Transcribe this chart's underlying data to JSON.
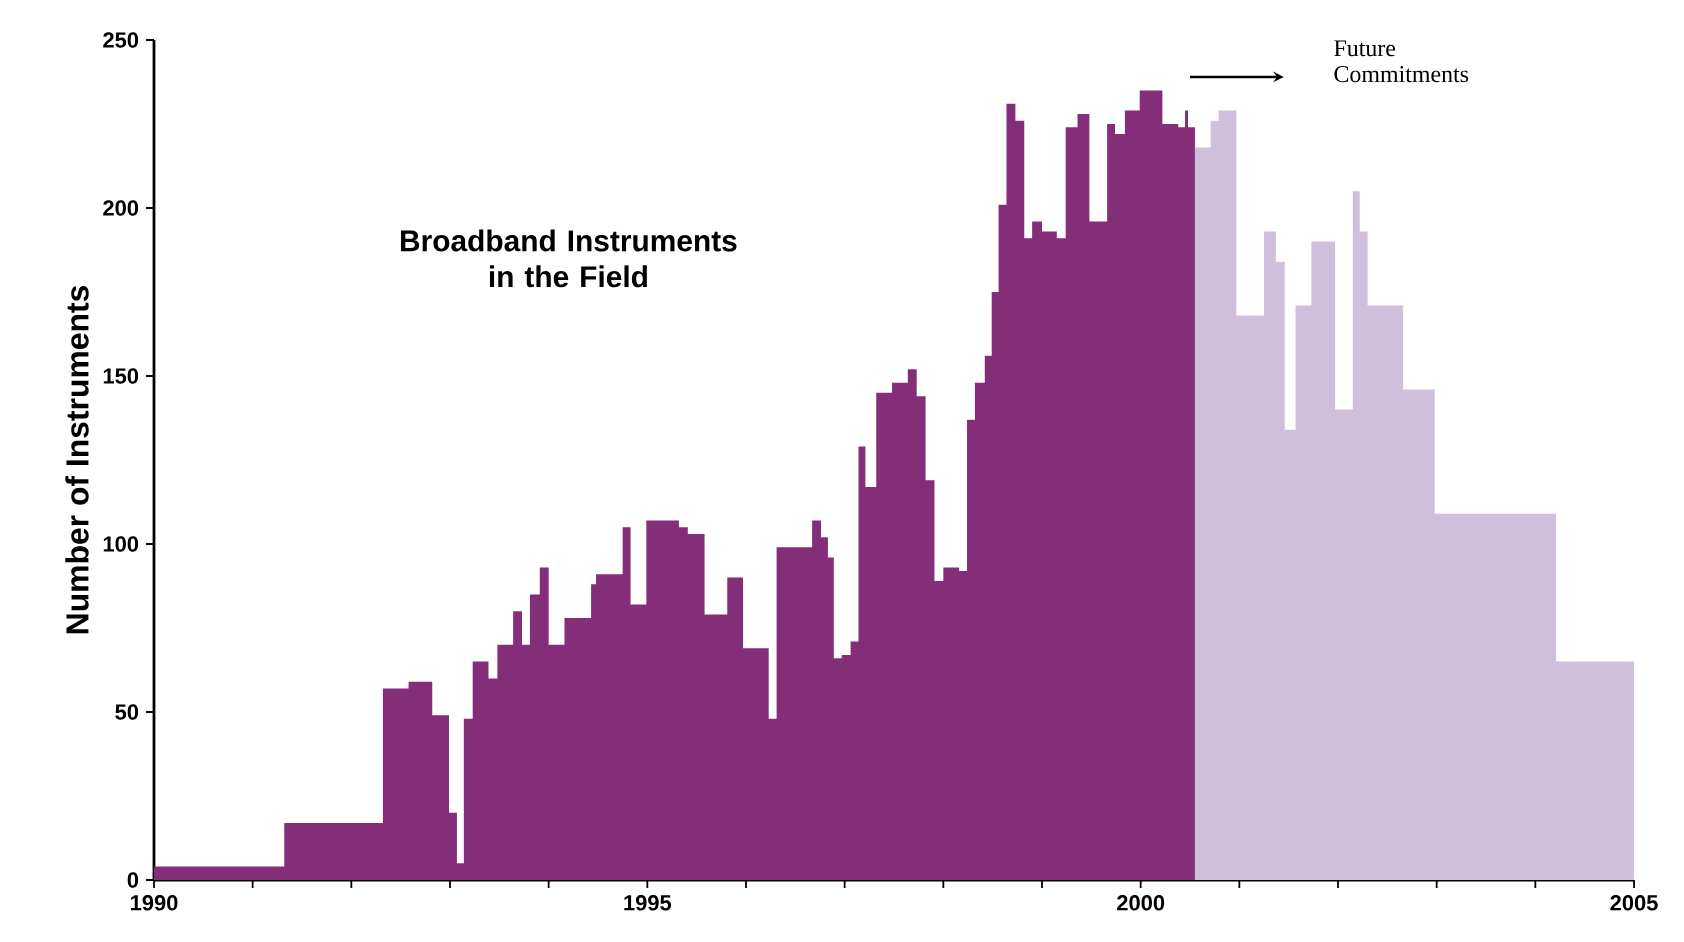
{
  "chart_data": {
    "type": "area",
    "title": "Broadband Instruments in the Field",
    "ylabel": "Number of Instruments",
    "annotations": [
      "Future Commitments"
    ],
    "series": [
      {
        "color": "#842d78",
        "x": [
          1990,
          1991.32,
          1992.32,
          1992.58,
          1992.82,
          1992.99,
          1993.07,
          1993.14,
          1993.23,
          1993.39,
          1993.48,
          1993.64,
          1993.73,
          1993.81,
          1993.91,
          1994.0,
          1994.16,
          1994.43,
          1994.48,
          1994.75,
          1994.83,
          1994.99,
          1995.32,
          1995.41,
          1995.58,
          1995.81,
          1995.97,
          1996.23,
          1996.31,
          1996.67,
          1996.76,
          1996.83,
          1996.89,
          1996.97,
          1997.06,
          1997.14,
          1997.21,
          1997.32,
          1997.48,
          1997.64,
          1997.73,
          1997.82,
          1997.91,
          1998.0,
          1998.16,
          1998.24,
          1998.32,
          1998.42,
          1998.49,
          1998.56,
          1998.64,
          1998.73,
          1998.82,
          1998.9,
          1999.0,
          1999.15,
          1999.24,
          1999.36,
          1999.48,
          1999.66,
          1999.74,
          1999.84,
          1999.99,
          2000.22,
          2000.38,
          2000.45,
          2000.48,
          2000.55
        ],
        "values": [
          4,
          17,
          57,
          59,
          49,
          20,
          5,
          48,
          65,
          60,
          70,
          80,
          70,
          85,
          93,
          70,
          78,
          88,
          91,
          105,
          82,
          107,
          105,
          103,
          79,
          90,
          69,
          48,
          99,
          107,
          102,
          96,
          66,
          67,
          71,
          129,
          117,
          145,
          148,
          152,
          144,
          119,
          89,
          93,
          92,
          137,
          148,
          156,
          175,
          201,
          231,
          226,
          191,
          196,
          193,
          191,
          224,
          228,
          196,
          225,
          222,
          229,
          235,
          225,
          224,
          229,
          224,
          224
        ]
      },
      {
        "color": "#cfbfdc",
        "x": [
          2000.55,
          2000.71,
          2000.79,
          2000.97,
          2001.25,
          2001.37,
          2001.46,
          2001.57,
          2001.73,
          2001.97,
          2002.15,
          2002.22,
          2002.3,
          2002.66,
          2002.98,
          2004.21,
          2005.0
        ],
        "values": [
          218,
          226,
          229,
          168,
          193,
          184,
          134,
          171,
          190,
          140,
          205,
          193,
          171,
          146,
          109,
          65,
          65
        ]
      }
    ],
    "xlim": [
      1990,
      2005
    ],
    "ylim": [
      0,
      250
    ],
    "xticks": [
      1990,
      {
        "value": 1991,
        "label": null
      },
      {
        "value": 1992,
        "label": null
      },
      {
        "value": 1993,
        "label": null
      },
      {
        "value": 1994,
        "label": null
      },
      1995,
      {
        "value": 1996,
        "label": null
      },
      {
        "value": 1997,
        "label": null
      },
      {
        "value": 1998,
        "label": null
      },
      {
        "value": 1999,
        "label": null
      },
      2000,
      {
        "value": 2001,
        "label": null
      },
      {
        "value": 2002,
        "label": null
      },
      {
        "value": 2003,
        "label": null
      },
      {
        "value": 2004,
        "label": null
      },
      2005
    ],
    "yticks": [
      0,
      50,
      100,
      150,
      200,
      250
    ]
  }
}
